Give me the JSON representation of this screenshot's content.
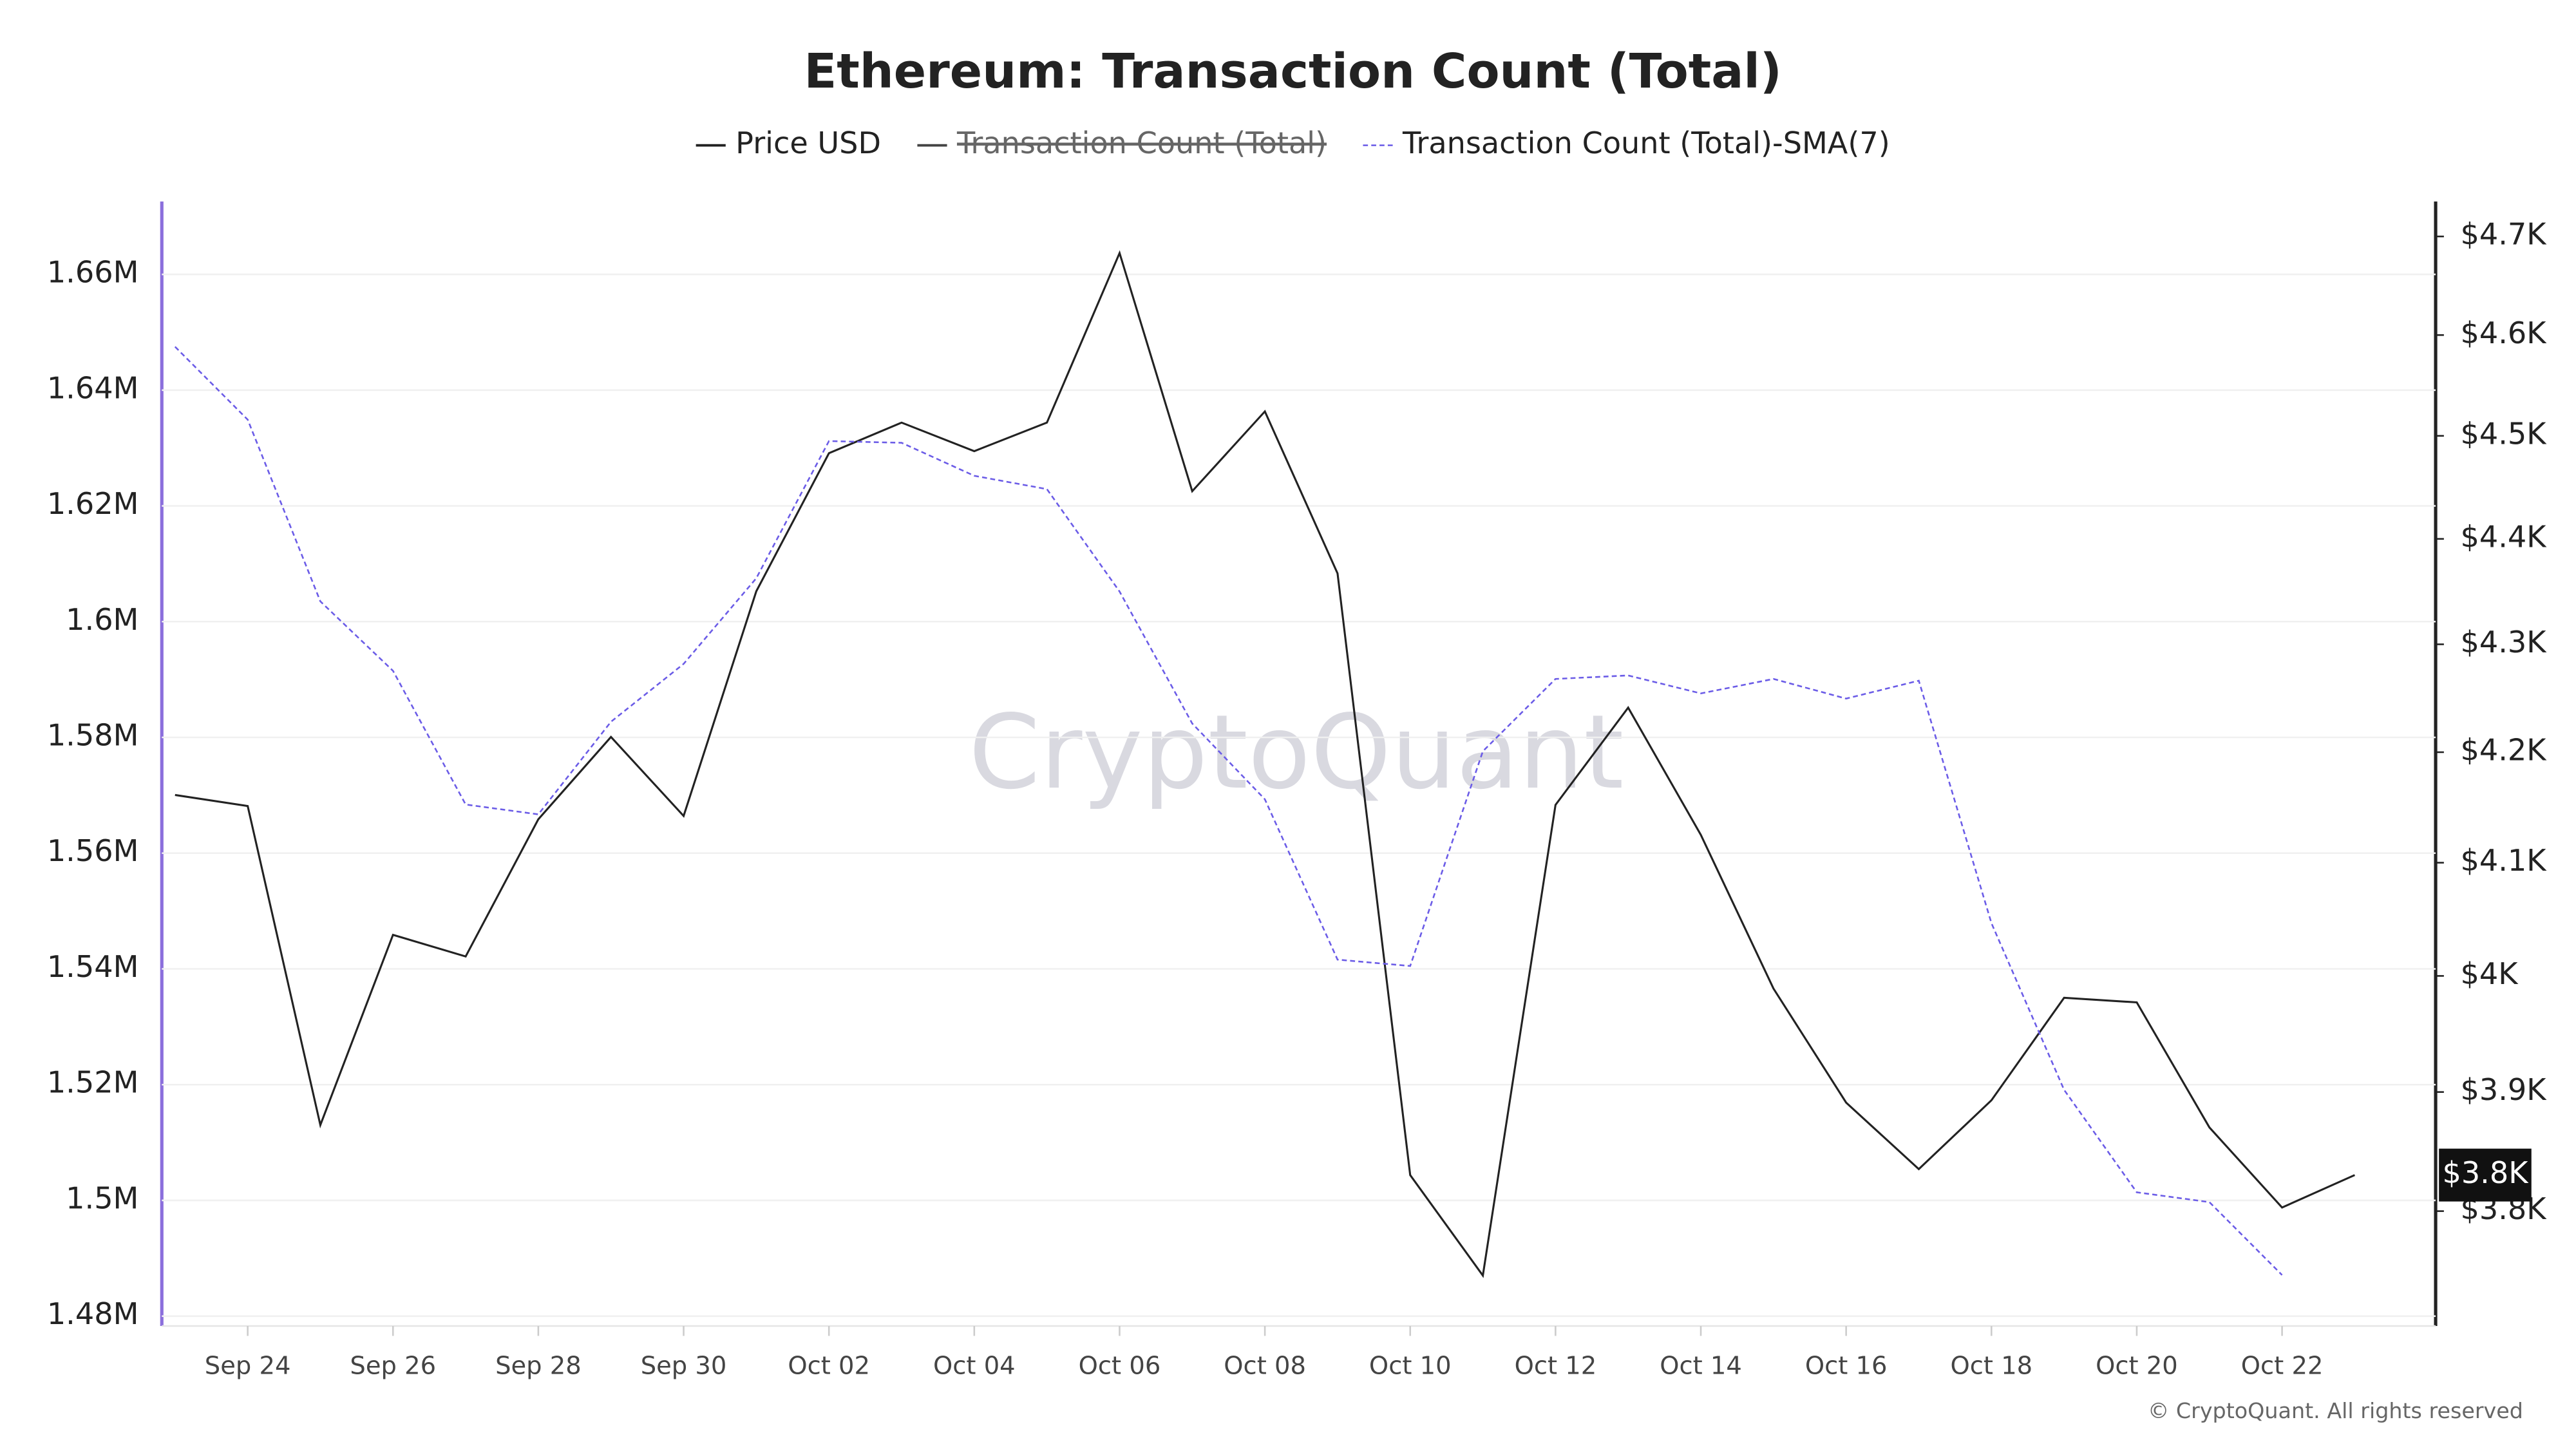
{
  "chart_data": {
    "type": "line",
    "title": "Ethereum: Transaction Count (Total)",
    "watermark": "CryptoQuant",
    "footer": "© CryptoQuant. All rights reserved",
    "categories": [
      null,
      "Sep 24",
      null,
      "Sep 26",
      null,
      "Sep 28",
      null,
      "Sep 30",
      null,
      "Oct 02",
      null,
      "Oct 04",
      null,
      "Oct 06",
      null,
      "Oct 08",
      null,
      "Oct 10",
      null,
      "Oct 12",
      null,
      "Oct 14",
      null,
      "Oct 16",
      null,
      "Oct 18",
      null,
      "Oct 20",
      null,
      "Oct 22",
      null
    ],
    "series": [
      {
        "name": "Price USD",
        "color": "#222222",
        "axis": "y2",
        "values": [
          4161,
          4151,
          3872,
          4036,
          4017,
          4139,
          4214,
          4142,
          4350,
          4483,
          4513,
          4485,
          4513,
          4683,
          4446,
          4524,
          4367,
          3830,
          3747,
          4152,
          4241,
          4125,
          3989,
          3891,
          3835,
          3893,
          3981,
          3977,
          3870,
          3803,
          3830
        ]
      },
      {
        "name": "Transaction Count (Total)",
        "color": "#444444",
        "hidden": true,
        "values": [
          null,
          null,
          null,
          null,
          null,
          null,
          null,
          null,
          null,
          null,
          null,
          null,
          null,
          null,
          null,
          null,
          null,
          null,
          null,
          null,
          null,
          null,
          null,
          null,
          null,
          null,
          null,
          null,
          null,
          null,
          null
        ]
      },
      {
        "name": "Transaction Count (Total)-SMA(7)",
        "color": "#6b5ce7",
        "dashed": true,
        "values": [
          1647500,
          1634900,
          1603500,
          1591500,
          1568400,
          1566700,
          1582700,
          1592700,
          1607500,
          1631200,
          1630900,
          1625200,
          1622900,
          1605200,
          1582400,
          1569300,
          1541600,
          1540500,
          1577600,
          1590100,
          1590700,
          1587600,
          1590100,
          1586700,
          1589800,
          1547900,
          1519100,
          1501400,
          1499700,
          1487100,
          null
        ]
      }
    ],
    "current_value_label": "$3.8K",
    "ylim": [
      1478300,
      1672600
    ],
    "yticks": [
      {
        "value": 1480000,
        "label": "1.48M"
      },
      {
        "value": 1500000,
        "label": "1.5M"
      },
      {
        "value": 1520000,
        "label": "1.52M"
      },
      {
        "value": 1540000,
        "label": "1.54M"
      },
      {
        "value": 1560000,
        "label": "1.56M"
      },
      {
        "value": 1580000,
        "label": "1.58M"
      },
      {
        "value": 1600000,
        "label": "1.6M"
      },
      {
        "value": 1620000,
        "label": "1.62M"
      },
      {
        "value": 1640000,
        "label": "1.64M"
      },
      {
        "value": 1660000,
        "label": "1.66M"
      }
    ],
    "y2lim": [
      3706,
      4736
    ],
    "y2log": true,
    "y2ticks": [
      {
        "value": 3800,
        "label": "$3.8K"
      },
      {
        "value": 3900,
        "label": "$3.9K"
      },
      {
        "value": 4000,
        "label": "$4K"
      },
      {
        "value": 4100,
        "label": "$4.1K"
      },
      {
        "value": 4200,
        "label": "$4.2K"
      },
      {
        "value": 4300,
        "label": "$4.3K"
      },
      {
        "value": 4400,
        "label": "$4.4K"
      },
      {
        "value": 4500,
        "label": "$4.5K"
      },
      {
        "value": 4600,
        "label": "$4.6K"
      },
      {
        "value": 4700,
        "label": "$4.7K"
      }
    ],
    "grid": true
  }
}
